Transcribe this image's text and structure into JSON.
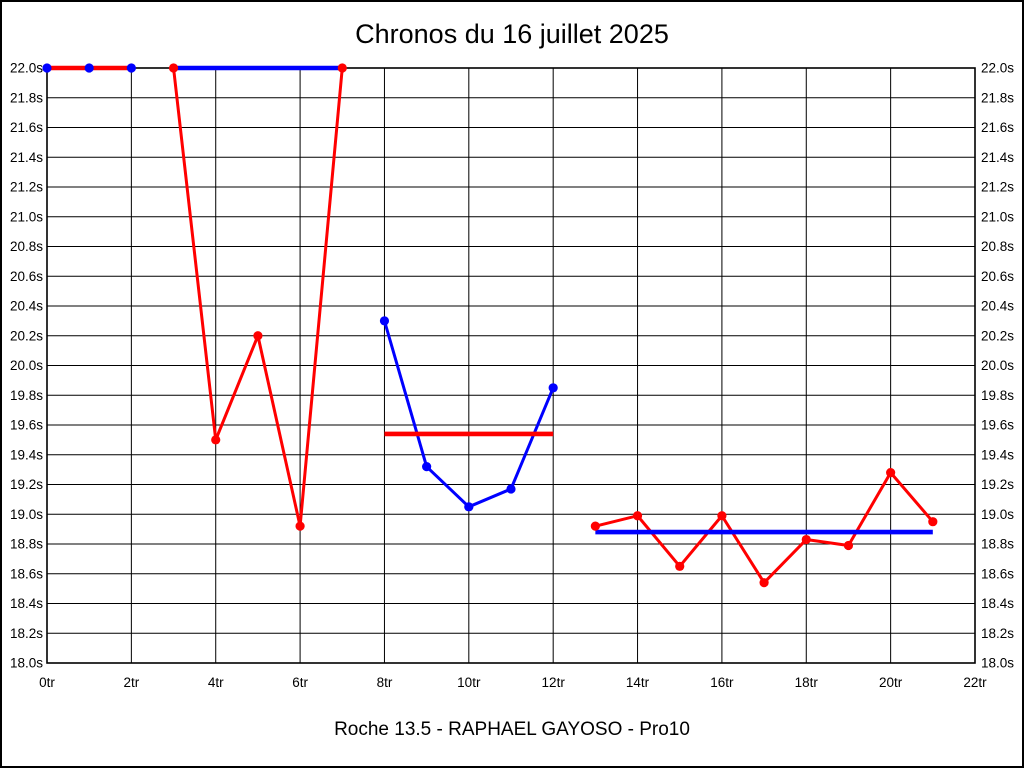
{
  "chart_data": {
    "type": "line",
    "title": "Chronos du 16 juillet 2025",
    "footer_label": "Roche 13.5 - RAPHAEL GAYOSO - Pro10",
    "x_unit": "tr",
    "y_unit": "s",
    "xlim": [
      0,
      22
    ],
    "ylim": [
      18.0,
      22.0
    ],
    "grid": true,
    "legend": "none",
    "colors": {
      "red": "#ff0000",
      "blue": "#0000ff",
      "grid": "#000000",
      "background": "#ffffff"
    },
    "x_ticks": [
      {
        "value": 0,
        "label": "0tr"
      },
      {
        "value": 2,
        "label": "2tr"
      },
      {
        "value": 4,
        "label": "4tr"
      },
      {
        "value": 6,
        "label": "6tr"
      },
      {
        "value": 8,
        "label": "8tr"
      },
      {
        "value": 10,
        "label": "10tr"
      },
      {
        "value": 12,
        "label": "12tr"
      },
      {
        "value": 14,
        "label": "14tr"
      },
      {
        "value": 16,
        "label": "16tr"
      },
      {
        "value": 18,
        "label": "18tr"
      },
      {
        "value": 20,
        "label": "20tr"
      },
      {
        "value": 22,
        "label": "22tr"
      }
    ],
    "y_ticks": [
      {
        "value": 22.0,
        "label": "22.0s"
      },
      {
        "value": 21.8,
        "label": "21.8s"
      },
      {
        "value": 21.6,
        "label": "21.6s"
      },
      {
        "value": 21.4,
        "label": "21.4s"
      },
      {
        "value": 21.2,
        "label": "21.2s"
      },
      {
        "value": 21.0,
        "label": "21.0s"
      },
      {
        "value": 20.8,
        "label": "20.8s"
      },
      {
        "value": 20.6,
        "label": "20.6s"
      },
      {
        "value": 20.4,
        "label": "20.4s"
      },
      {
        "value": 20.2,
        "label": "20.2s"
      },
      {
        "value": 20.0,
        "label": "20.0s"
      },
      {
        "value": 19.8,
        "label": "19.8s"
      },
      {
        "value": 19.6,
        "label": "19.6s"
      },
      {
        "value": 19.4,
        "label": "19.4s"
      },
      {
        "value": 19.2,
        "label": "19.2s"
      },
      {
        "value": 19.0,
        "label": "19.0s"
      },
      {
        "value": 18.8,
        "label": "18.8s"
      },
      {
        "value": 18.6,
        "label": "18.6s"
      },
      {
        "value": 18.4,
        "label": "18.4s"
      },
      {
        "value": 18.2,
        "label": "18.2s"
      },
      {
        "value": 18.0,
        "label": "18.0s"
      }
    ],
    "sessions": [
      {
        "name": "session-1",
        "color": "blue",
        "points": [
          [
            0,
            22.0
          ],
          [
            1,
            22.0
          ],
          [
            2,
            22.0
          ]
        ],
        "average": 22.0,
        "average_color": "red",
        "average_span": [
          0,
          2
        ]
      },
      {
        "name": "session-2",
        "color": "red",
        "points": [
          [
            3,
            22.0
          ],
          [
            4,
            19.5
          ],
          [
            5,
            20.2
          ],
          [
            6,
            18.92
          ],
          [
            7,
            22.0
          ]
        ],
        "average": 22.0,
        "average_color": "blue",
        "average_span": [
          3,
          7
        ]
      },
      {
        "name": "session-3",
        "color": "blue",
        "points": [
          [
            8,
            20.3
          ],
          [
            9,
            19.32
          ],
          [
            10,
            19.05
          ],
          [
            11,
            19.17
          ],
          [
            12,
            19.85
          ]
        ],
        "average": 19.54,
        "average_color": "red",
        "average_span": [
          8,
          12
        ]
      },
      {
        "name": "session-4",
        "color": "red",
        "points": [
          [
            13,
            18.92
          ],
          [
            14,
            18.99
          ],
          [
            15,
            18.65
          ],
          [
            16,
            18.99
          ],
          [
            17,
            18.54
          ],
          [
            18,
            18.83
          ],
          [
            19,
            18.79
          ],
          [
            20,
            19.28
          ],
          [
            21,
            18.95
          ]
        ],
        "average": 18.88,
        "average_color": "blue",
        "average_span": [
          13,
          21
        ]
      }
    ]
  }
}
